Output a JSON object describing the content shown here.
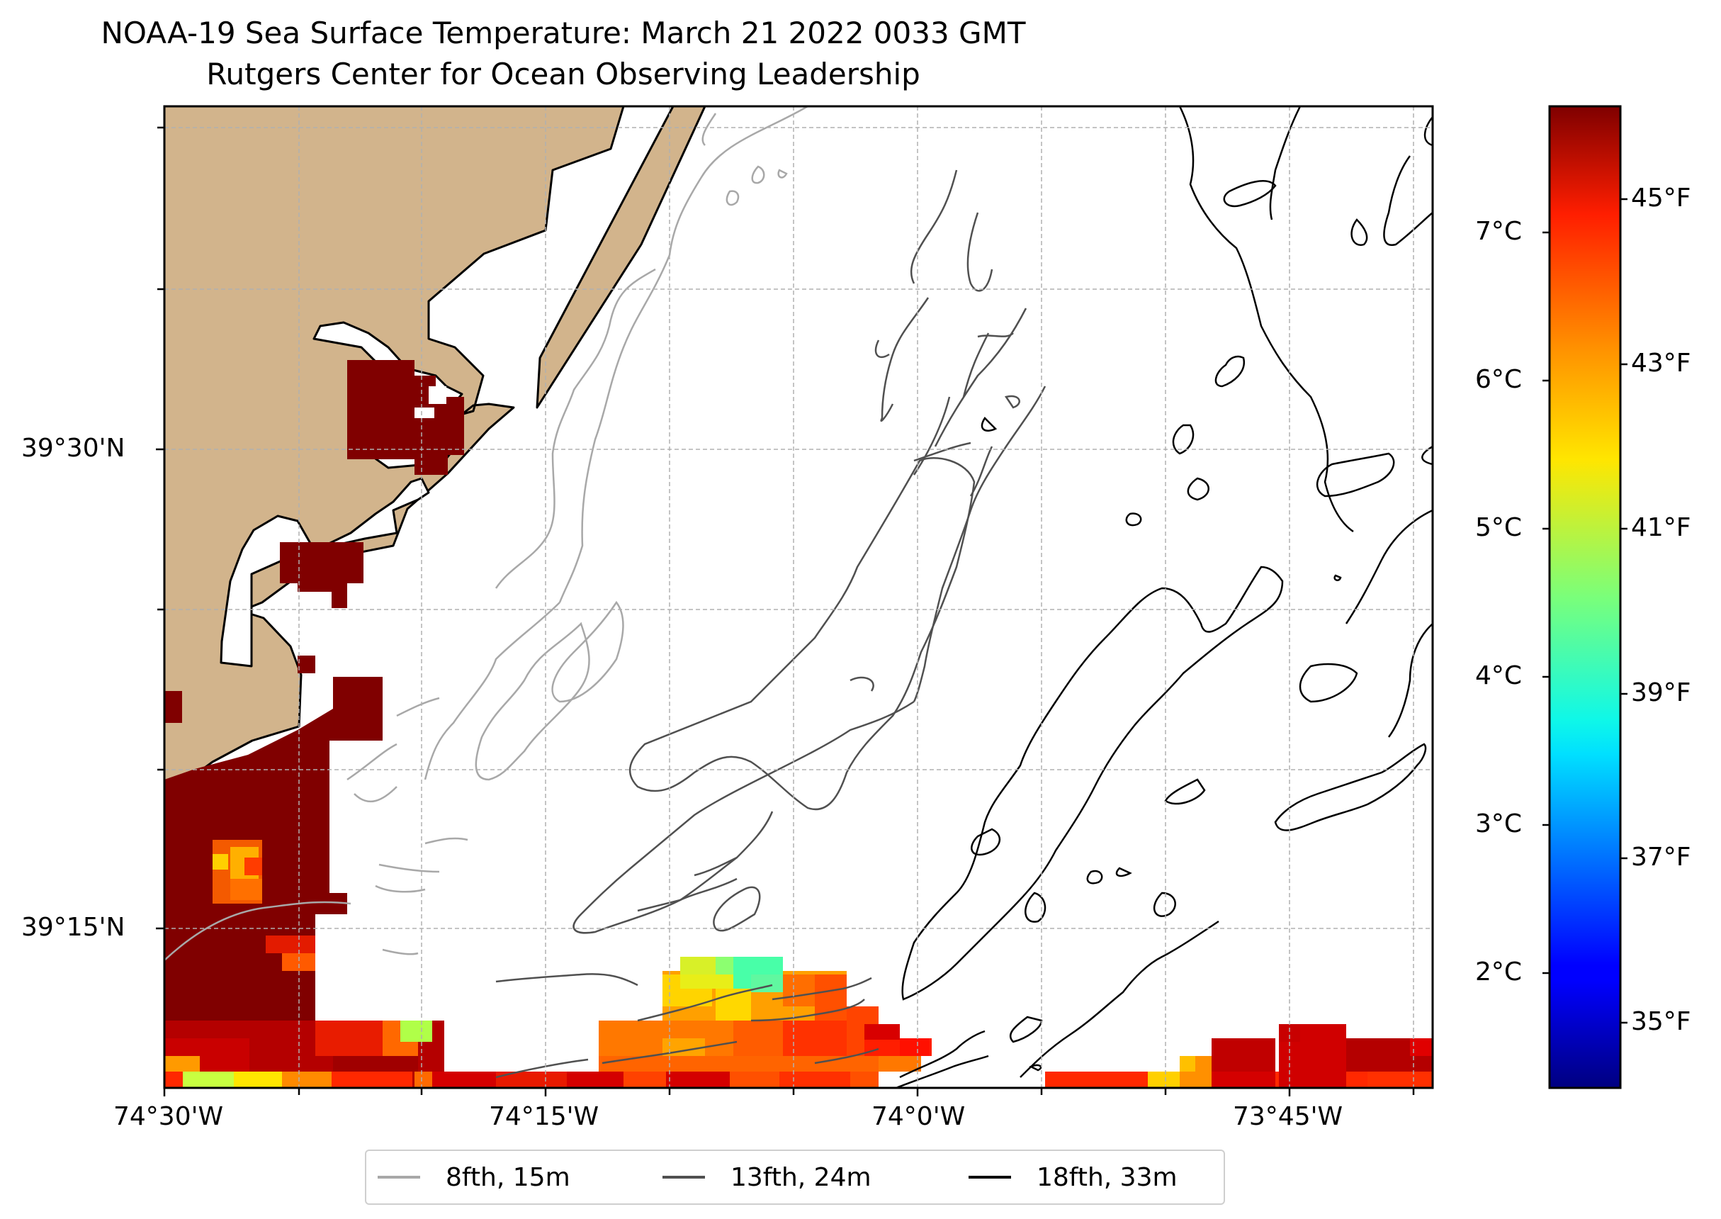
{
  "title": "NOAA-19 Sea Surface Temperature: March 21 2022 0033 GMT",
  "subtitle": "Rutgers Center for Ocean Observing Leadership",
  "map": {
    "lon_labels": [
      "74°30'W",
      "74°15'W",
      "74°0'W",
      "73°45'W"
    ],
    "lat_labels": [
      "39°30'N",
      "39°15'N"
    ],
    "land_color": "#d2b48c",
    "grid": "dashed"
  },
  "colorbar": {
    "colormap": "jet",
    "celsius_ticks": [
      "2°C",
      "3°C",
      "4°C",
      "5°C",
      "6°C",
      "7°C"
    ],
    "fahrenheit_ticks": [
      "35°F",
      "37°F",
      "39°F",
      "41°F",
      "43°F",
      "45°F"
    ],
    "range_c": [
      1.3,
      7.9
    ]
  },
  "legend": {
    "items": [
      {
        "label": "8fth, 15m",
        "color": "#a8a8a8"
      },
      {
        "label": "13fth, 24m",
        "color": "#505050"
      },
      {
        "label": "18fth, 33m",
        "color": "#000000"
      }
    ]
  }
}
